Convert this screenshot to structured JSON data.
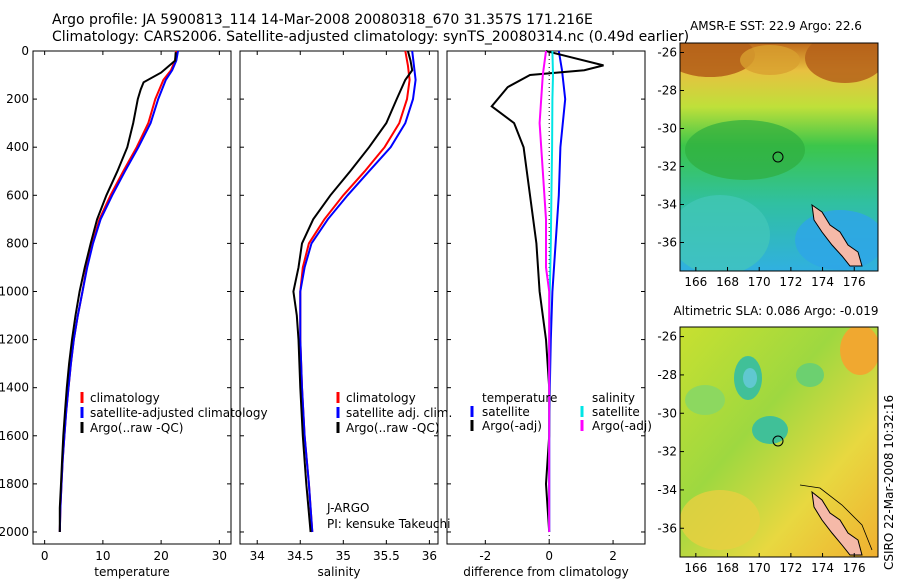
{
  "header": {
    "line1": "Argo profile: JA 5900813_114 14-Mar-2008 20080318_670 31.357S 171.216E",
    "line2": "Climatology: CARS2006. Satellite-adjusted climatology: synTS_20080314.nc (0.49d earlier)"
  },
  "side_credit": "CSIRO 22-Mar-2008 10:32:16",
  "colors": {
    "climatology": "#ff0000",
    "satellite": "#0000ff",
    "argo": "#000000",
    "sat_diff_sal": "#00e5e5",
    "argo_diff_sal": "#ff00ff"
  },
  "chart_data": [
    {
      "type": "line",
      "id": "temperature",
      "xlabel": "temperature",
      "ylabel": "",
      "xlim": [
        -2,
        32
      ],
      "ylim": [
        0,
        2050
      ],
      "y_inverted": true,
      "xticks": [
        0,
        10,
        20,
        30
      ],
      "yticks": [
        0,
        200,
        400,
        600,
        800,
        1000,
        1200,
        1400,
        1600,
        1800,
        2000
      ],
      "legend": [
        "climatology",
        "satellite-adjusted climatology",
        "Argo(..raw -QC)"
      ],
      "series": [
        {
          "name": "climatology",
          "color": "#ff0000",
          "points": [
            [
              22.6,
              0
            ],
            [
              22.4,
              40
            ],
            [
              21.7,
              80
            ],
            [
              20.4,
              120
            ],
            [
              19.0,
              200
            ],
            [
              17.8,
              300
            ],
            [
              15.8,
              400
            ],
            [
              13.5,
              500
            ],
            [
              11.3,
              600
            ],
            [
              9.4,
              700
            ],
            [
              8.2,
              800
            ],
            [
              7.2,
              900
            ],
            [
              6.5,
              1000
            ],
            [
              5.7,
              1100
            ],
            [
              5.0,
              1200
            ],
            [
              4.5,
              1300
            ],
            [
              4.1,
              1400
            ],
            [
              3.7,
              1500
            ],
            [
              3.4,
              1600
            ],
            [
              3.1,
              1700
            ],
            [
              2.9,
              1800
            ],
            [
              2.7,
              1900
            ],
            [
              2.6,
              2000
            ]
          ]
        },
        {
          "name": "satellite-adjusted climatology",
          "color": "#0000ff",
          "points": [
            [
              22.9,
              0
            ],
            [
              22.6,
              40
            ],
            [
              21.9,
              80
            ],
            [
              20.8,
              120
            ],
            [
              19.5,
              200
            ],
            [
              18.2,
              300
            ],
            [
              16.1,
              400
            ],
            [
              13.8,
              500
            ],
            [
              11.6,
              600
            ],
            [
              9.6,
              700
            ],
            [
              8.3,
              800
            ],
            [
              7.3,
              900
            ],
            [
              6.5,
              1000
            ],
            [
              5.7,
              1100
            ],
            [
              5.0,
              1200
            ],
            [
              4.5,
              1300
            ],
            [
              4.1,
              1400
            ],
            [
              3.7,
              1500
            ],
            [
              3.4,
              1600
            ],
            [
              3.1,
              1700
            ],
            [
              2.9,
              1800
            ],
            [
              2.7,
              1900
            ],
            [
              2.6,
              2000
            ]
          ]
        },
        {
          "name": "Argo(..raw -QC)",
          "color": "#000000",
          "points": [
            [
              22.5,
              5
            ],
            [
              22.4,
              40
            ],
            [
              20.0,
              90
            ],
            [
              17.0,
              130
            ],
            [
              16.5,
              160
            ],
            [
              16.0,
              200
            ],
            [
              15.2,
              300
            ],
            [
              14.2,
              400
            ],
            [
              12.5,
              500
            ],
            [
              10.6,
              600
            ],
            [
              9.0,
              700
            ],
            [
              7.9,
              800
            ],
            [
              6.9,
              900
            ],
            [
              6.0,
              1000
            ],
            [
              5.3,
              1100
            ],
            [
              4.7,
              1200
            ],
            [
              4.2,
              1300
            ],
            [
              3.8,
              1400
            ],
            [
              3.5,
              1500
            ],
            [
              3.2,
              1600
            ],
            [
              3.0,
              1700
            ],
            [
              2.8,
              1800
            ],
            [
              2.6,
              1900
            ],
            [
              2.6,
              2000
            ]
          ]
        }
      ]
    },
    {
      "type": "line",
      "id": "salinity",
      "xlabel": "salinity",
      "ylabel": "",
      "xlim": [
        33.8,
        36.1
      ],
      "ylim": [
        0,
        2050
      ],
      "y_inverted": true,
      "xticks": [
        34,
        34.5,
        35,
        35.5,
        36
      ],
      "yticks": [
        0,
        200,
        400,
        600,
        800,
        1000,
        1200,
        1400,
        1600,
        1800,
        2000
      ],
      "legend": [
        "climatology",
        "satellite adj. clim.",
        "Argo(..raw -QC)"
      ],
      "annotations": [
        "J-ARGO",
        "PI: kensuke Takeuchi"
      ],
      "series": [
        {
          "name": "climatology",
          "color": "#ff0000",
          "points": [
            [
              35.72,
              0
            ],
            [
              35.75,
              60
            ],
            [
              35.77,
              120
            ],
            [
              35.74,
              200
            ],
            [
              35.65,
              300
            ],
            [
              35.48,
              400
            ],
            [
              35.25,
              500
            ],
            [
              35.0,
              600
            ],
            [
              34.78,
              700
            ],
            [
              34.6,
              800
            ],
            [
              34.53,
              900
            ],
            [
              34.5,
              1000
            ],
            [
              34.5,
              1200
            ],
            [
              34.52,
              1400
            ],
            [
              34.55,
              1600
            ],
            [
              34.6,
              1800
            ],
            [
              34.64,
              2000
            ]
          ]
        },
        {
          "name": "satellite adj. clim.",
          "color": "#0000ff",
          "points": [
            [
              35.8,
              0
            ],
            [
              35.82,
              60
            ],
            [
              35.84,
              120
            ],
            [
              35.81,
              200
            ],
            [
              35.72,
              300
            ],
            [
              35.55,
              400
            ],
            [
              35.3,
              500
            ],
            [
              35.05,
              600
            ],
            [
              34.82,
              700
            ],
            [
              34.63,
              800
            ],
            [
              34.55,
              900
            ],
            [
              34.5,
              1000
            ],
            [
              34.5,
              1200
            ],
            [
              34.52,
              1400
            ],
            [
              34.55,
              1600
            ],
            [
              34.6,
              1800
            ],
            [
              34.64,
              2000
            ]
          ]
        },
        {
          "name": "Argo(..raw -QC)",
          "color": "#000000",
          "points": [
            [
              35.75,
              0
            ],
            [
              35.78,
              40
            ],
            [
              35.8,
              80
            ],
            [
              35.72,
              120
            ],
            [
              35.62,
              200
            ],
            [
              35.5,
              300
            ],
            [
              35.3,
              400
            ],
            [
              35.08,
              500
            ],
            [
              34.85,
              600
            ],
            [
              34.65,
              700
            ],
            [
              34.52,
              800
            ],
            [
              34.48,
              900
            ],
            [
              34.42,
              1000
            ],
            [
              34.46,
              1100
            ],
            [
              34.48,
              1200
            ],
            [
              34.5,
              1400
            ],
            [
              34.53,
              1600
            ],
            [
              34.57,
              1800
            ],
            [
              34.62,
              2000
            ]
          ]
        }
      ]
    },
    {
      "type": "line",
      "id": "difference",
      "xlabel": "difference from climatology",
      "ylabel": "",
      "xlim": [
        -3.2,
        3
      ],
      "ylim": [
        0,
        2050
      ],
      "y_inverted": true,
      "xticks": [
        -2,
        0,
        2
      ],
      "yticks": [
        0,
        200,
        400,
        600,
        800,
        1000,
        1200,
        1400,
        1600,
        1800,
        2000
      ],
      "legend_headers": [
        "temperature",
        "salinity"
      ],
      "legend": [
        "satellite",
        "Argo(-adj)",
        "satellite",
        "Argo(-adj)"
      ],
      "series": [
        {
          "name": "temperature satellite",
          "color": "#0000ff",
          "points": [
            [
              0.3,
              0
            ],
            [
              0.4,
              80
            ],
            [
              0.5,
              200
            ],
            [
              0.35,
              400
            ],
            [
              0.3,
              600
            ],
            [
              0.2,
              800
            ],
            [
              0.1,
              1000
            ],
            [
              0.05,
              1200
            ],
            [
              0.02,
              1400
            ],
            [
              0.0,
              1600
            ],
            [
              0.0,
              2000
            ]
          ]
        },
        {
          "name": "temperature Argo(-adj)",
          "color": "#000000",
          "points": [
            [
              -0.1,
              0
            ],
            [
              0.5,
              20
            ],
            [
              1.7,
              60
            ],
            [
              1.1,
              80
            ],
            [
              -0.6,
              100
            ],
            [
              -1.3,
              150
            ],
            [
              -1.8,
              230
            ],
            [
              -1.1,
              300
            ],
            [
              -0.8,
              400
            ],
            [
              -0.7,
              500
            ],
            [
              -0.6,
              600
            ],
            [
              -0.4,
              800
            ],
            [
              -0.3,
              1000
            ],
            [
              -0.1,
              1200
            ],
            [
              0.0,
              1400
            ],
            [
              0.0,
              1600
            ],
            [
              -0.1,
              1800
            ],
            [
              0.0,
              2000
            ]
          ]
        },
        {
          "name": "salinity satellite",
          "color": "#00e5e5",
          "points": [
            [
              0.1,
              0
            ],
            [
              0.12,
              100
            ],
            [
              0.1,
              200
            ],
            [
              0.09,
              400
            ],
            [
              0.07,
              600
            ],
            [
              0.05,
              800
            ],
            [
              0.02,
              1000
            ],
            [
              0.0,
              1200
            ],
            [
              0.0,
              2000
            ]
          ]
        },
        {
          "name": "salinity Argo(-adj)",
          "color": "#ff00ff",
          "points": [
            [
              -0.1,
              0
            ],
            [
              -0.2,
              100
            ],
            [
              -0.3,
              300
            ],
            [
              -0.2,
              500
            ],
            [
              -0.1,
              700
            ],
            [
              -0.1,
              900
            ],
            [
              0.0,
              1000
            ],
            [
              0.0,
              1200
            ],
            [
              0.0,
              2000
            ]
          ]
        }
      ]
    },
    {
      "type": "heatmap",
      "id": "sst-map",
      "title": "AMSR-E SST: 22.9 Argo: 22.6",
      "xticks": [
        166,
        168,
        170,
        172,
        174,
        176
      ],
      "yticks": [
        -26,
        -28,
        -30,
        -32,
        -34,
        -36
      ],
      "xlim": [
        165,
        177.5
      ],
      "ylim": [
        -37.5,
        -25.5
      ],
      "profile_location": [
        171.216,
        -31.357
      ]
    },
    {
      "type": "heatmap",
      "id": "sla-map",
      "title": "Altimetric SLA: 0.086 Argo: -0.019",
      "xticks": [
        166,
        168,
        170,
        172,
        174,
        176
      ],
      "yticks": [
        -26,
        -28,
        -30,
        -32,
        -34,
        -36
      ],
      "xlim": [
        165,
        177.5
      ],
      "ylim": [
        -37.5,
        -25.5
      ],
      "profile_location": [
        171.216,
        -31.357
      ]
    }
  ]
}
